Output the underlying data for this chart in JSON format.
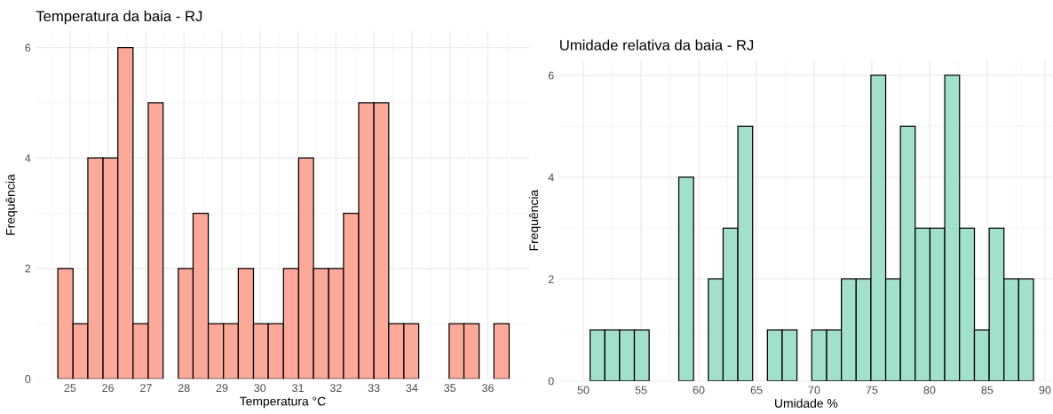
{
  "chart_data": [
    {
      "type": "histogram",
      "title": "Temperatura da baia - RJ",
      "xlabel": "Temperatura °C",
      "ylabel": "Frequência",
      "color": "#fca99a",
      "bins": [
        24.68,
        25.08,
        25.47,
        25.87,
        26.26,
        26.66,
        27.06,
        27.45,
        27.85,
        28.24,
        28.64,
        29.04,
        29.43,
        29.83,
        30.22,
        30.62,
        31.02,
        31.41,
        31.81,
        32.2,
        32.6,
        33.0,
        33.39,
        33.79,
        34.18,
        34.58,
        34.98,
        35.37,
        35.77,
        36.16,
        36.56
      ],
      "values": [
        2,
        1,
        4,
        4,
        6,
        1,
        5,
        0,
        2,
        3,
        1,
        1,
        2,
        1,
        1,
        2,
        4,
        2,
        2,
        3,
        5,
        5,
        1,
        1,
        0,
        0,
        1,
        1,
        0,
        1
      ],
      "xlim": [
        24.1,
        37.1
      ],
      "xticks": [
        25,
        26,
        27,
        28,
        29,
        30,
        31,
        32,
        33,
        34,
        35,
        36
      ],
      "ylim": [
        0,
        6.3
      ],
      "yticks": [
        0,
        2,
        4,
        6
      ],
      "grid": true,
      "legend": false
    },
    {
      "type": "histogram",
      "title": "Umidade relativa da baia - RJ",
      "xlabel": "Umidade %",
      "ylabel": "Frequência",
      "color": "#a3e0cb",
      "bins": [
        50.58,
        51.86,
        53.14,
        54.42,
        55.7,
        56.98,
        58.27,
        59.55,
        60.83,
        62.11,
        63.39,
        64.67,
        65.95,
        67.23,
        68.51,
        69.79,
        71.08,
        72.36,
        73.64,
        74.92,
        76.2,
        77.48,
        78.76,
        80.04,
        81.32,
        82.6,
        83.89,
        85.17,
        86.45,
        87.73,
        89.01
      ],
      "values": [
        1,
        1,
        1,
        1,
        0,
        0,
        4,
        0,
        2,
        3,
        5,
        0,
        1,
        1,
        0,
        1,
        1,
        2,
        2,
        6,
        2,
        5,
        3,
        3,
        6,
        3,
        1,
        3,
        2,
        2
      ],
      "xlim": [
        47.9,
        90.7
      ],
      "xticks": [
        50,
        55,
        60,
        65,
        70,
        75,
        80,
        85,
        90
      ],
      "ylim": [
        0,
        6.3
      ],
      "yticks": [
        0,
        2,
        4,
        6
      ],
      "grid": true,
      "legend": false
    }
  ]
}
